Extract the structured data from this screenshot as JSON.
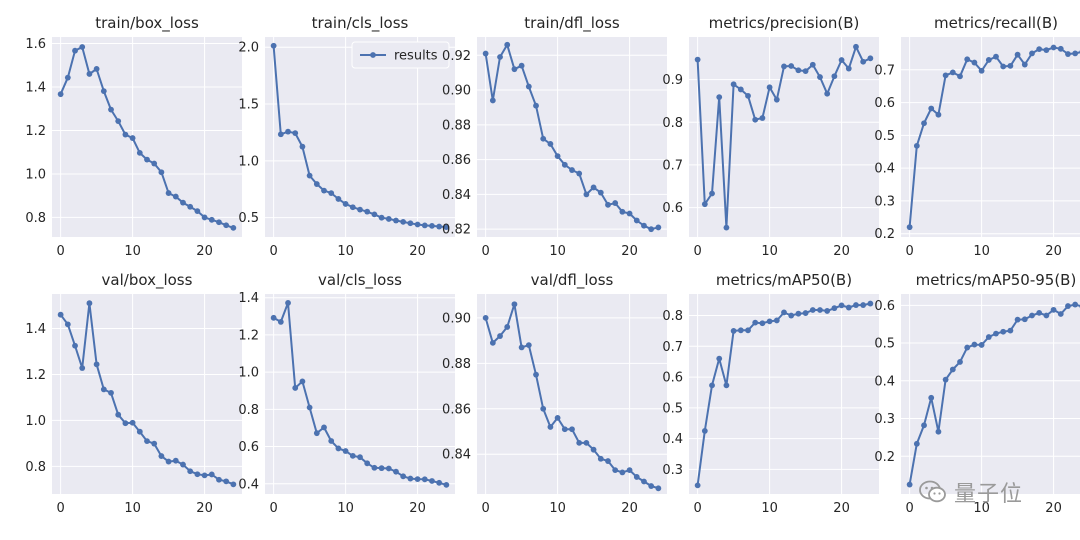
{
  "colors": {
    "panel_bg": "#eaeaf2",
    "grid": "#ffffff",
    "series": "#4c72b0",
    "text": "#262626"
  },
  "legend_panel_index": 1,
  "watermark": {
    "text": "量子位",
    "icon": "wechat-icon"
  },
  "chart_data": [
    {
      "type": "line",
      "title": "train/box_loss",
      "legend": null,
      "xticks": [
        0,
        10,
        20
      ],
      "yticks": [
        0.8,
        1.0,
        1.2,
        1.4,
        1.6
      ],
      "ytick_labels": [
        "0.8",
        "1.0",
        "1.2",
        "1.4",
        "1.6"
      ],
      "xlim": [
        -1.2,
        25.2
      ],
      "ylim": [
        0.71,
        1.63
      ],
      "x": [
        0,
        1,
        2,
        3,
        4,
        5,
        6,
        7,
        8,
        9,
        10,
        11,
        12,
        13,
        14,
        15,
        16,
        17,
        18,
        19,
        20,
        21,
        22,
        23,
        24
      ],
      "series": [
        {
          "name": "results",
          "values": [
            1.367,
            1.443,
            1.567,
            1.584,
            1.46,
            1.483,
            1.381,
            1.296,
            1.243,
            1.181,
            1.165,
            1.097,
            1.066,
            1.048,
            1.008,
            0.912,
            0.896,
            0.868,
            0.849,
            0.829,
            0.8,
            0.789,
            0.778,
            0.764,
            0.752
          ]
        }
      ]
    },
    {
      "type": "line",
      "title": "train/cls_loss",
      "legend": "results",
      "xticks": [
        0,
        10,
        20
      ],
      "yticks": [
        0.5,
        1.0,
        1.5,
        2.0
      ],
      "ytick_labels": [
        "0.5",
        "1.0",
        "1.5",
        "2.0"
      ],
      "xlim": [
        -1.2,
        25.2
      ],
      "ylim": [
        0.33,
        2.09
      ],
      "x": [
        0,
        1,
        2,
        3,
        4,
        5,
        6,
        7,
        8,
        9,
        10,
        11,
        12,
        13,
        14,
        15,
        16,
        17,
        18,
        19,
        20,
        21,
        22,
        23,
        24
      ],
      "series": [
        {
          "name": "results",
          "values": [
            2.013,
            1.234,
            1.257,
            1.244,
            1.125,
            0.87,
            0.796,
            0.738,
            0.716,
            0.665,
            0.621,
            0.592,
            0.571,
            0.553,
            0.529,
            0.5,
            0.489,
            0.475,
            0.463,
            0.451,
            0.44,
            0.432,
            0.428,
            0.422,
            0.417
          ]
        }
      ]
    },
    {
      "type": "line",
      "title": "train/dfl_loss",
      "legend": null,
      "xticks": [
        0,
        10,
        20
      ],
      "yticks": [
        0.82,
        0.84,
        0.86,
        0.88,
        0.9,
        0.92
      ],
      "ytick_labels": [
        "0.82",
        "0.84",
        "0.86",
        "0.88",
        "0.90",
        "0.92"
      ],
      "xlim": [
        -1.2,
        25.2
      ],
      "ylim": [
        0.8155,
        0.9305
      ],
      "x": [
        0,
        1,
        2,
        3,
        4,
        5,
        6,
        7,
        8,
        9,
        10,
        11,
        12,
        13,
        14,
        15,
        16,
        17,
        18,
        19,
        20,
        21,
        22,
        23,
        24
      ],
      "series": [
        {
          "name": "results",
          "values": [
            0.921,
            0.894,
            0.919,
            0.926,
            0.912,
            0.914,
            0.902,
            0.891,
            0.872,
            0.869,
            0.862,
            0.857,
            0.854,
            0.852,
            0.84,
            0.844,
            0.841,
            0.834,
            0.835,
            0.83,
            0.829,
            0.825,
            0.822,
            0.82,
            0.821
          ]
        }
      ]
    },
    {
      "type": "line",
      "title": "metrics/precision(B)",
      "legend": null,
      "xticks": [
        0,
        10,
        20
      ],
      "yticks": [
        0.6,
        0.7,
        0.8,
        0.9
      ],
      "ytick_labels": [
        "0.6",
        "0.7",
        "0.8",
        "0.9"
      ],
      "xlim": [
        -1.2,
        25.2
      ],
      "ylim": [
        0.531,
        1.0
      ],
      "x": [
        0,
        1,
        2,
        3,
        4,
        5,
        6,
        7,
        8,
        9,
        10,
        11,
        12,
        13,
        14,
        15,
        16,
        17,
        18,
        19,
        20,
        21,
        22,
        23,
        24
      ],
      "series": [
        {
          "name": "results",
          "values": [
            0.947,
            0.608,
            0.633,
            0.859,
            0.553,
            0.889,
            0.877,
            0.862,
            0.806,
            0.81,
            0.882,
            0.853,
            0.931,
            0.932,
            0.922,
            0.92,
            0.935,
            0.906,
            0.867,
            0.908,
            0.946,
            0.926,
            0.977,
            0.942,
            0.95
          ]
        }
      ]
    },
    {
      "type": "line",
      "title": "metrics/recall(B)",
      "legend": null,
      "xticks": [
        0,
        10,
        20
      ],
      "yticks": [
        0.2,
        0.3,
        0.4,
        0.5,
        0.6,
        0.7
      ],
      "ytick_labels": [
        "0.2",
        "0.3",
        "0.4",
        "0.5",
        "0.6",
        "0.7"
      ],
      "xlim": [
        -1.2,
        25.2
      ],
      "ylim": [
        0.19,
        0.8
      ],
      "x": [
        0,
        1,
        2,
        3,
        4,
        5,
        6,
        7,
        8,
        9,
        10,
        11,
        12,
        13,
        14,
        15,
        16,
        17,
        18,
        19,
        20,
        21,
        22,
        23,
        24
      ],
      "series": [
        {
          "name": "results",
          "values": [
            0.22,
            0.468,
            0.537,
            0.582,
            0.563,
            0.683,
            0.692,
            0.68,
            0.732,
            0.722,
            0.697,
            0.73,
            0.74,
            0.71,
            0.712,
            0.746,
            0.716,
            0.75,
            0.763,
            0.76,
            0.768,
            0.764,
            0.748,
            0.75,
            0.755
          ]
        }
      ]
    },
    {
      "type": "line",
      "title": "val/box_loss",
      "legend": null,
      "xticks": [
        0,
        10,
        20
      ],
      "yticks": [
        0.8,
        1.0,
        1.2,
        1.4
      ],
      "ytick_labels": [
        "0.8",
        "1.0",
        "1.2",
        "1.4"
      ],
      "xlim": [
        -1.2,
        25.2
      ],
      "ylim": [
        0.68,
        1.55
      ],
      "x": [
        0,
        1,
        2,
        3,
        4,
        5,
        6,
        7,
        8,
        9,
        10,
        11,
        12,
        13,
        14,
        15,
        16,
        17,
        18,
        19,
        20,
        21,
        22,
        23,
        24
      ],
      "series": [
        {
          "name": "results",
          "values": [
            1.46,
            1.418,
            1.325,
            1.228,
            1.51,
            1.244,
            1.135,
            1.12,
            1.025,
            0.988,
            0.99,
            0.951,
            0.91,
            0.899,
            0.845,
            0.821,
            0.825,
            0.808,
            0.779,
            0.766,
            0.761,
            0.765,
            0.742,
            0.735,
            0.722
          ]
        }
      ]
    },
    {
      "type": "line",
      "title": "val/cls_loss",
      "legend": null,
      "xticks": [
        0,
        10,
        20
      ],
      "yticks": [
        0.4,
        0.6,
        0.8,
        1.0,
        1.2,
        1.4
      ],
      "ytick_labels": [
        "0.4",
        "0.6",
        "0.8",
        "1.0",
        "1.2",
        "1.4"
      ],
      "xlim": [
        -1.2,
        25.2
      ],
      "ylim": [
        0.345,
        1.42
      ],
      "x": [
        0,
        1,
        2,
        3,
        4,
        5,
        6,
        7,
        8,
        9,
        10,
        11,
        12,
        13,
        14,
        15,
        16,
        17,
        18,
        19,
        20,
        21,
        22,
        23,
        24
      ],
      "series": [
        {
          "name": "results",
          "values": [
            1.292,
            1.27,
            1.372,
            0.915,
            0.95,
            0.81,
            0.672,
            0.703,
            0.63,
            0.59,
            0.576,
            0.55,
            0.543,
            0.51,
            0.486,
            0.484,
            0.482,
            0.465,
            0.44,
            0.428,
            0.425,
            0.424,
            0.415,
            0.405,
            0.394
          ]
        }
      ]
    },
    {
      "type": "line",
      "title": "val/dfl_loss",
      "legend": null,
      "xticks": [
        0,
        10,
        20
      ],
      "yticks": [
        0.84,
        0.86,
        0.88,
        0.9
      ],
      "ytick_labels": [
        "0.84",
        "0.86",
        "0.88",
        "0.90"
      ],
      "xlim": [
        -1.2,
        25.2
      ],
      "ylim": [
        0.8225,
        0.9105
      ],
      "x": [
        0,
        1,
        2,
        3,
        4,
        5,
        6,
        7,
        8,
        9,
        10,
        11,
        12,
        13,
        14,
        15,
        16,
        17,
        18,
        19,
        20,
        21,
        22,
        23,
        24
      ],
      "series": [
        {
          "name": "results",
          "values": [
            0.9,
            0.889,
            0.892,
            0.896,
            0.906,
            0.887,
            0.888,
            0.875,
            0.86,
            0.852,
            0.856,
            0.851,
            0.851,
            0.845,
            0.845,
            0.842,
            0.838,
            0.837,
            0.833,
            0.832,
            0.833,
            0.83,
            0.828,
            0.826,
            0.825
          ]
        }
      ]
    },
    {
      "type": "line",
      "title": "metrics/mAP50(B)",
      "legend": null,
      "xticks": [
        0,
        10,
        20
      ],
      "yticks": [
        0.3,
        0.4,
        0.5,
        0.6,
        0.7,
        0.8
      ],
      "ytick_labels": [
        "0.3",
        "0.4",
        "0.5",
        "0.6",
        "0.7",
        "0.8"
      ],
      "xlim": [
        -1.2,
        25.2
      ],
      "ylim": [
        0.22,
        0.87
      ],
      "x": [
        0,
        1,
        2,
        3,
        4,
        5,
        6,
        7,
        8,
        9,
        10,
        11,
        12,
        13,
        14,
        15,
        16,
        17,
        18,
        19,
        20,
        21,
        22,
        23,
        24
      ],
      "series": [
        {
          "name": "results",
          "values": [
            0.248,
            0.425,
            0.573,
            0.66,
            0.573,
            0.75,
            0.752,
            0.752,
            0.777,
            0.775,
            0.781,
            0.784,
            0.81,
            0.8,
            0.806,
            0.808,
            0.818,
            0.818,
            0.815,
            0.824,
            0.833,
            0.826,
            0.834,
            0.834,
            0.839
          ]
        }
      ]
    },
    {
      "type": "line",
      "title": "metrics/mAP50-95(B)",
      "legend": null,
      "xticks": [
        0,
        10,
        20
      ],
      "yticks": [
        0.2,
        0.3,
        0.4,
        0.5,
        0.6
      ],
      "ytick_labels": [
        "0.2",
        "0.3",
        "0.4",
        "0.5",
        "0.6"
      ],
      "xlim": [
        -1.2,
        25.2
      ],
      "ylim": [
        0.1,
        0.63
      ],
      "x": [
        0,
        1,
        2,
        3,
        4,
        5,
        6,
        7,
        8,
        9,
        10,
        11,
        12,
        13,
        14,
        15,
        16,
        17,
        18,
        19,
        20,
        21,
        22,
        23,
        24
      ],
      "series": [
        {
          "name": "results",
          "values": [
            0.125,
            0.233,
            0.282,
            0.355,
            0.265,
            0.403,
            0.43,
            0.45,
            0.488,
            0.496,
            0.495,
            0.516,
            0.525,
            0.53,
            0.533,
            0.562,
            0.563,
            0.573,
            0.58,
            0.573,
            0.588,
            0.577,
            0.598,
            0.602,
            0.597
          ]
        }
      ]
    }
  ]
}
